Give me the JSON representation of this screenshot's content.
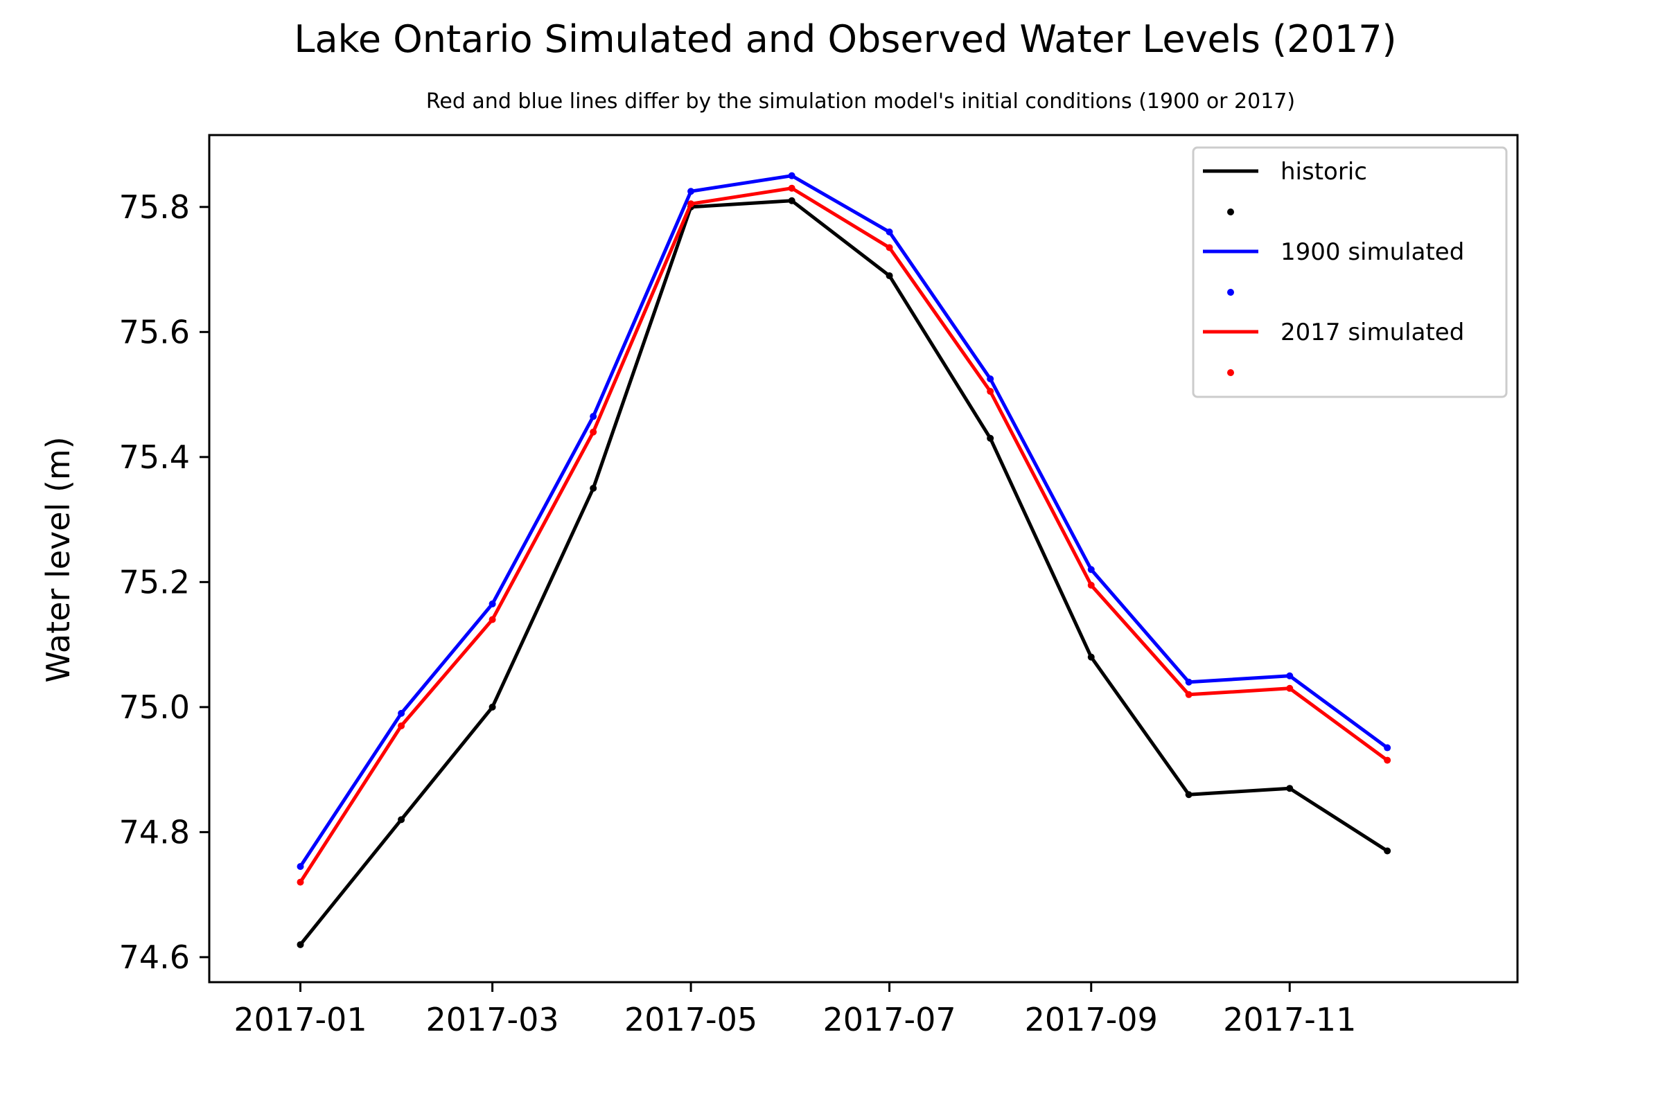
{
  "chart_data": {
    "type": "line",
    "title": "Lake Ontario Simulated and Observed Water Levels (2017)",
    "subtitle": "Red and blue lines differ by the simulation model's initial conditions (1900 or 2017)",
    "xlabel": "",
    "ylabel": "Water level (m)",
    "x": [
      "2017-01",
      "2017-02",
      "2017-03",
      "2017-04",
      "2017-05",
      "2017-06",
      "2017-07",
      "2017-08",
      "2017-09",
      "2017-10",
      "2017-11",
      "2017-12"
    ],
    "x_ticks": [
      "2017-01",
      "2017-03",
      "2017-05",
      "2017-07",
      "2017-09",
      "2017-11"
    ],
    "y_ticks": [
      74.6,
      74.8,
      75.0,
      75.2,
      75.4,
      75.6,
      75.8
    ],
    "y_tick_labels": [
      "74.6",
      "74.8",
      "75.0",
      "75.2",
      "75.4",
      "75.6",
      "75.8"
    ],
    "ylim": [
      74.56,
      75.915
    ],
    "xlim": [
      "2016-12-04",
      "2018-01-10"
    ],
    "grid": false,
    "legend_position": "top-right",
    "series": [
      {
        "name": "historic",
        "color": "#000000",
        "values": [
          74.62,
          74.82,
          75.0,
          75.35,
          75.8,
          75.81,
          75.69,
          75.43,
          75.08,
          74.86,
          74.87,
          74.77
        ]
      },
      {
        "name": "1900 simulated",
        "color": "#0000ff",
        "values": [
          74.745,
          74.99,
          75.165,
          75.465,
          75.825,
          75.85,
          75.76,
          75.525,
          75.22,
          75.04,
          75.05,
          74.935
        ]
      },
      {
        "name": "2017 simulated",
        "color": "#ff0000",
        "values": [
          74.72,
          74.97,
          75.14,
          75.44,
          75.805,
          75.83,
          75.735,
          75.505,
          75.195,
          75.02,
          75.03,
          74.915
        ]
      }
    ]
  }
}
